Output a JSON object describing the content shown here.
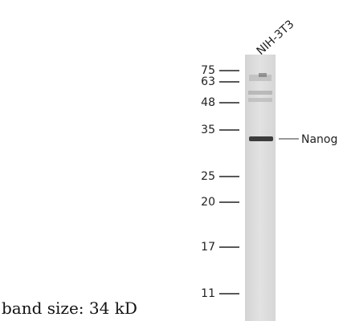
{
  "lane_label": "NIH-3T3",
  "markers": [
    "75",
    "63",
    "48",
    "35",
    "25",
    "20",
    "17",
    "11"
  ],
  "band_label": "Nanog",
  "caption": "band size: 34 kD"
}
